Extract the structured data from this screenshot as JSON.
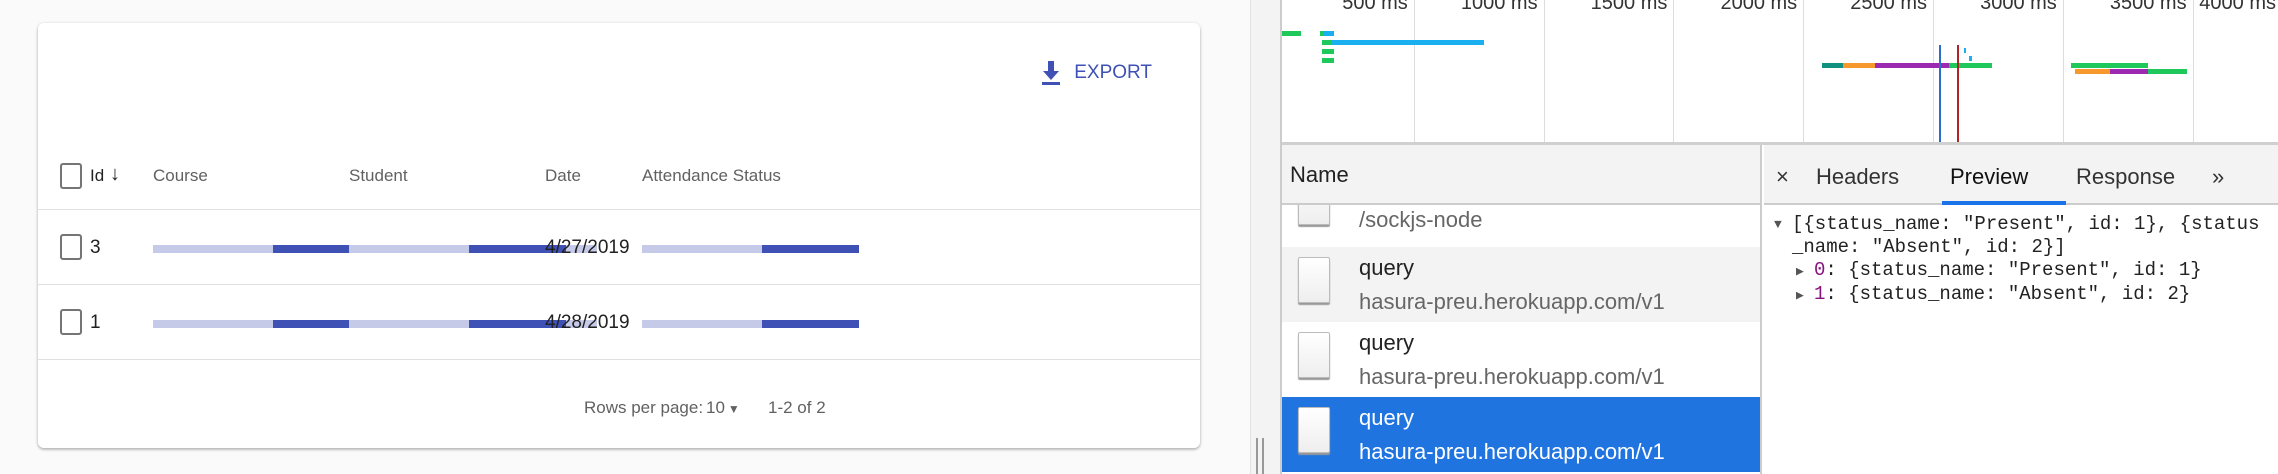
{
  "table": {
    "export_label": "EXPORT",
    "columns": [
      "Id",
      "Course",
      "Student",
      "Date",
      "Attendance Status"
    ],
    "sort_column": "Id",
    "sort_direction": "desc",
    "rows": [
      {
        "id": "3",
        "date": "4/27/2019"
      },
      {
        "id": "1",
        "date": "4/28/2019"
      }
    ],
    "footer": {
      "rows_per_page_label": "Rows per page:",
      "rows_per_page": "10",
      "range": "1-2 of 2"
    },
    "colors": {
      "accent": "#3f51b5",
      "skeleton": "#c5cae9"
    }
  },
  "devtools": {
    "timeline_ticks": [
      "500 ms",
      "1000 ms",
      "1500 ms",
      "2000 ms",
      "2500 ms",
      "3000 ms",
      "3500 ms",
      "4000 ms"
    ],
    "name_header": "Name",
    "requests": [
      {
        "name": "/sockjs-node",
        "url": ""
      },
      {
        "name": "query",
        "url": "hasura-preu.herokuapp.com/v1"
      },
      {
        "name": "query",
        "url": "hasura-preu.herokuapp.com/v1"
      },
      {
        "name": "query",
        "url": "hasura-preu.herokuapp.com/v1",
        "selected": true
      }
    ],
    "tabs": {
      "close": "×",
      "headers": "Headers",
      "preview": "Preview",
      "response": "Response",
      "more": "»",
      "active": "Preview"
    },
    "preview": {
      "summary": "[{status_name: \"Present\", id: 1}, {status_name: \"Absent\", id: 2}]",
      "items": [
        {
          "index": "0",
          "value": ": {status_name: \"Present\", id: 1}"
        },
        {
          "index": "1",
          "value": ": {status_name: \"Absent\", id: 2}"
        }
      ]
    }
  }
}
